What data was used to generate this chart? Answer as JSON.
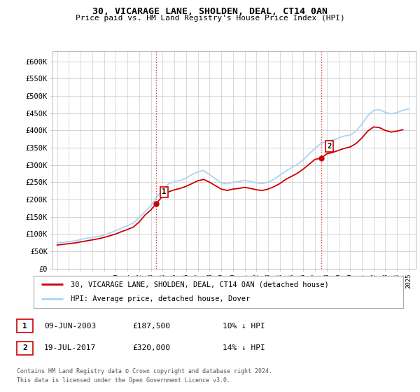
{
  "title": "30, VICARAGE LANE, SHOLDEN, DEAL, CT14 0AN",
  "subtitle": "Price paid vs. HM Land Registry's House Price Index (HPI)",
  "ylim": [
    0,
    630000
  ],
  "yticks": [
    0,
    50000,
    100000,
    150000,
    200000,
    250000,
    300000,
    350000,
    400000,
    450000,
    500000,
    550000,
    600000
  ],
  "ytick_labels": [
    "£0",
    "£50K",
    "£100K",
    "£150K",
    "£200K",
    "£250K",
    "£300K",
    "£350K",
    "£400K",
    "£450K",
    "£500K",
    "£550K",
    "£600K"
  ],
  "xlim_start": 1994.6,
  "xlim_end": 2025.6,
  "background_color": "#ffffff",
  "plot_bg_color": "#ffffff",
  "grid_color": "#cccccc",
  "hpi_line_color": "#aad4f5",
  "price_line_color": "#cc0000",
  "marker1_x": 2003.44,
  "marker1_y": 187500,
  "marker2_x": 2017.54,
  "marker2_y": 320000,
  "marker1_label": "1",
  "marker2_label": "2",
  "legend_line1": "30, VICARAGE LANE, SHOLDEN, DEAL, CT14 0AN (detached house)",
  "legend_line2": "HPI: Average price, detached house, Dover",
  "table_row1": [
    "1",
    "09-JUN-2003",
    "£187,500",
    "10% ↓ HPI"
  ],
  "table_row2": [
    "2",
    "19-JUL-2017",
    "£320,000",
    "14% ↓ HPI"
  ],
  "footer1": "Contains HM Land Registry data © Crown copyright and database right 2024.",
  "footer2": "This data is licensed under the Open Government Licence v3.0.",
  "dashed_line1_x": 2003.44,
  "dashed_line2_x": 2017.54,
  "years_hpi": [
    1995.0,
    1995.5,
    1996.0,
    1996.5,
    1997.0,
    1997.5,
    1998.0,
    1998.5,
    1999.0,
    1999.5,
    2000.0,
    2000.5,
    2001.0,
    2001.5,
    2002.0,
    2002.5,
    2003.0,
    2003.5,
    2004.0,
    2004.5,
    2005.0,
    2005.5,
    2006.0,
    2006.5,
    2007.0,
    2007.5,
    2008.0,
    2008.5,
    2009.0,
    2009.5,
    2010.0,
    2010.5,
    2011.0,
    2011.5,
    2012.0,
    2012.5,
    2013.0,
    2013.5,
    2014.0,
    2014.5,
    2015.0,
    2015.5,
    2016.0,
    2016.5,
    2017.0,
    2017.5,
    2018.0,
    2018.5,
    2019.0,
    2019.5,
    2020.0,
    2020.5,
    2021.0,
    2021.5,
    2022.0,
    2022.5,
    2023.0,
    2023.5,
    2024.0,
    2024.5,
    2025.0
  ],
  "hpi_values": [
    75000,
    76000,
    78000,
    80000,
    84000,
    88000,
    90000,
    93000,
    97000,
    103000,
    110000,
    117000,
    124000,
    132000,
    148000,
    165000,
    182000,
    207000,
    228000,
    245000,
    252000,
    255000,
    262000,
    272000,
    280000,
    284000,
    272000,
    260000,
    248000,
    245000,
    250000,
    252000,
    255000,
    252000,
    248000,
    246000,
    250000,
    258000,
    270000,
    282000,
    292000,
    302000,
    315000,
    332000,
    348000,
    362000,
    368000,
    372000,
    378000,
    384000,
    386000,
    398000,
    418000,
    442000,
    458000,
    460000,
    452000,
    448000,
    452000,
    458000,
    462000
  ],
  "years_price": [
    1995.0,
    1995.5,
    1996.0,
    1996.5,
    1997.0,
    1997.5,
    1998.0,
    1998.5,
    1999.0,
    1999.5,
    2000.0,
    2000.5,
    2001.0,
    2001.5,
    2002.0,
    2002.5,
    2003.0,
    2003.44,
    2004.0,
    2004.5,
    2005.0,
    2005.5,
    2006.0,
    2006.5,
    2007.0,
    2007.5,
    2008.0,
    2008.5,
    2009.0,
    2009.5,
    2010.0,
    2010.5,
    2011.0,
    2011.5,
    2012.0,
    2012.5,
    2013.0,
    2013.5,
    2014.0,
    2014.5,
    2015.0,
    2015.5,
    2016.0,
    2016.5,
    2017.0,
    2017.54,
    2018.0,
    2018.5,
    2019.0,
    2019.5,
    2020.0,
    2020.5,
    2021.0,
    2021.5,
    2022.0,
    2022.5,
    2023.0,
    2023.5,
    2024.0,
    2024.5
  ],
  "price_values": [
    68000,
    70000,
    72000,
    74000,
    77000,
    80000,
    83000,
    86000,
    90000,
    95000,
    100000,
    107000,
    113000,
    120000,
    135000,
    155000,
    170000,
    187500,
    210000,
    222000,
    228000,
    232000,
    238000,
    246000,
    254000,
    258000,
    250000,
    240000,
    230000,
    226000,
    230000,
    232000,
    235000,
    232000,
    228000,
    226000,
    230000,
    237000,
    246000,
    258000,
    267000,
    276000,
    288000,
    302000,
    316000,
    320000,
    332000,
    336000,
    342000,
    348000,
    352000,
    362000,
    378000,
    398000,
    410000,
    408000,
    400000,
    395000,
    398000,
    402000
  ]
}
